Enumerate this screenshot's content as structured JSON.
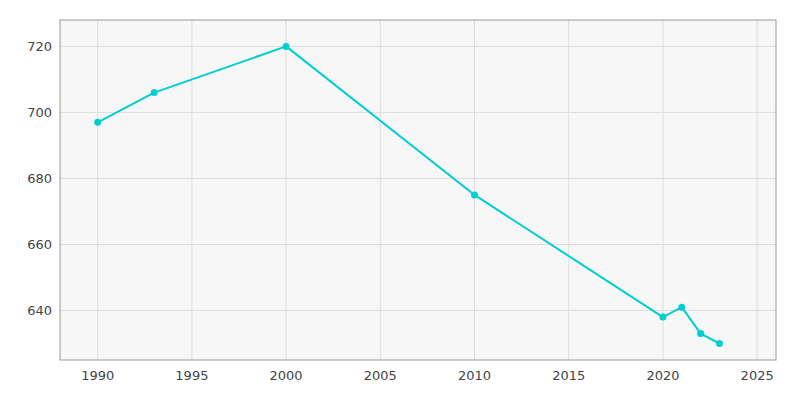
{
  "chart_data": {
    "type": "line",
    "x": [
      1990,
      1993,
      2000,
      2010,
      2020,
      2021,
      2022,
      2023
    ],
    "values": [
      697,
      706,
      720,
      675,
      638,
      641,
      633,
      630
    ],
    "color": "#00CED1",
    "marker": "circle",
    "xlim": [
      1988,
      2026
    ],
    "ylim": [
      625,
      728
    ],
    "xticks": [
      1990,
      1995,
      2000,
      2005,
      2010,
      2015,
      2020,
      2025
    ],
    "yticks": [
      640,
      660,
      680,
      700,
      720
    ],
    "grid": true
  }
}
